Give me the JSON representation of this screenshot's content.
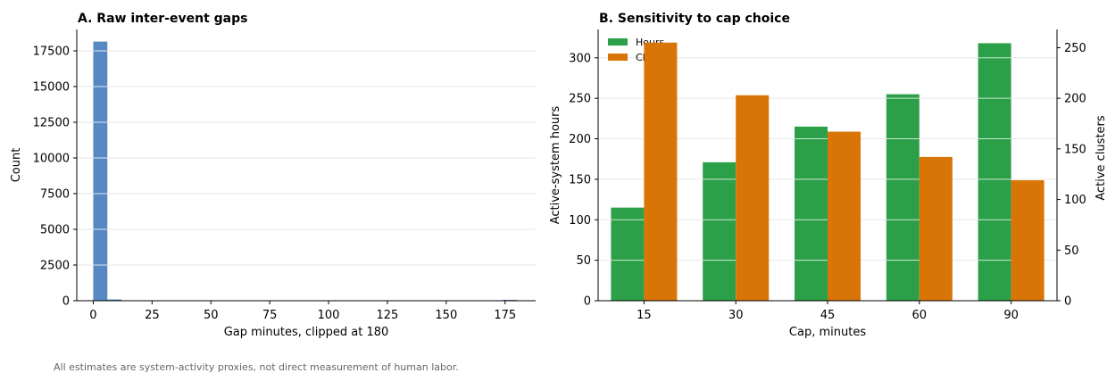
{
  "colors": {
    "histogram": "#5689c3",
    "hours": "#2ca048",
    "clusters": "#d97506",
    "grid": "#e6e6e6",
    "axis": "#000000"
  },
  "footnote": "All estimates are system-activity proxies, not direct measurement of human labor.",
  "chart_data": [
    {
      "id": "A",
      "type": "bar",
      "title": "A. Raw inter-event gaps",
      "xlabel": "Gap minutes, clipped at 180",
      "ylabel": "Count",
      "xlim": [
        -7,
        188
      ],
      "ylim": [
        0,
        19000
      ],
      "xticks": [
        0,
        25,
        50,
        75,
        100,
        125,
        150,
        175
      ],
      "yticks": [
        0,
        2500,
        5000,
        7500,
        10000,
        12500,
        15000,
        17500
      ],
      "ygrid": true,
      "bin_width": 6,
      "bins": [
        {
          "x0": 0,
          "count": 18150
        },
        {
          "x0": 6,
          "count": 90
        },
        {
          "x0": 12,
          "count": 25
        },
        {
          "x0": 18,
          "count": 12
        },
        {
          "x0": 24,
          "count": 8
        },
        {
          "x0": 30,
          "count": 6
        },
        {
          "x0": 36,
          "count": 5
        },
        {
          "x0": 42,
          "count": 4
        },
        {
          "x0": 48,
          "count": 4
        },
        {
          "x0": 54,
          "count": 3
        },
        {
          "x0": 60,
          "count": 3
        },
        {
          "x0": 66,
          "count": 3
        },
        {
          "x0": 72,
          "count": 2
        },
        {
          "x0": 78,
          "count": 2
        },
        {
          "x0": 84,
          "count": 2
        },
        {
          "x0": 90,
          "count": 2
        },
        {
          "x0": 96,
          "count": 2
        },
        {
          "x0": 102,
          "count": 2
        },
        {
          "x0": 108,
          "count": 1
        },
        {
          "x0": 114,
          "count": 1
        },
        {
          "x0": 120,
          "count": 1
        },
        {
          "x0": 126,
          "count": 1
        },
        {
          "x0": 132,
          "count": 1
        },
        {
          "x0": 138,
          "count": 1
        },
        {
          "x0": 144,
          "count": 1
        },
        {
          "x0": 150,
          "count": 1
        },
        {
          "x0": 156,
          "count": 1
        },
        {
          "x0": 162,
          "count": 1
        },
        {
          "x0": 168,
          "count": 1
        },
        {
          "x0": 174,
          "count": 60
        }
      ]
    },
    {
      "id": "B",
      "type": "bar",
      "title": "B. Sensitivity to cap choice",
      "xlabel": "Cap, minutes",
      "ylabel": "Active-system hours",
      "y2label": "Active clusters",
      "categories": [
        "15",
        "30",
        "45",
        "60",
        "90"
      ],
      "ylim": [
        0,
        335
      ],
      "y2lim": [
        0,
        268
      ],
      "yticks": [
        0,
        50,
        100,
        150,
        200,
        250,
        300
      ],
      "y2ticks": [
        0,
        50,
        100,
        150,
        200,
        250
      ],
      "ygrid": true,
      "legend_position": "top-left",
      "series": [
        {
          "name": "Hours",
          "axis": "left",
          "values": [
            115,
            171,
            215,
            255,
            318
          ]
        },
        {
          "name": "Clusters",
          "axis": "right",
          "values": [
            255,
            203,
            167,
            142,
            119
          ]
        }
      ]
    }
  ]
}
